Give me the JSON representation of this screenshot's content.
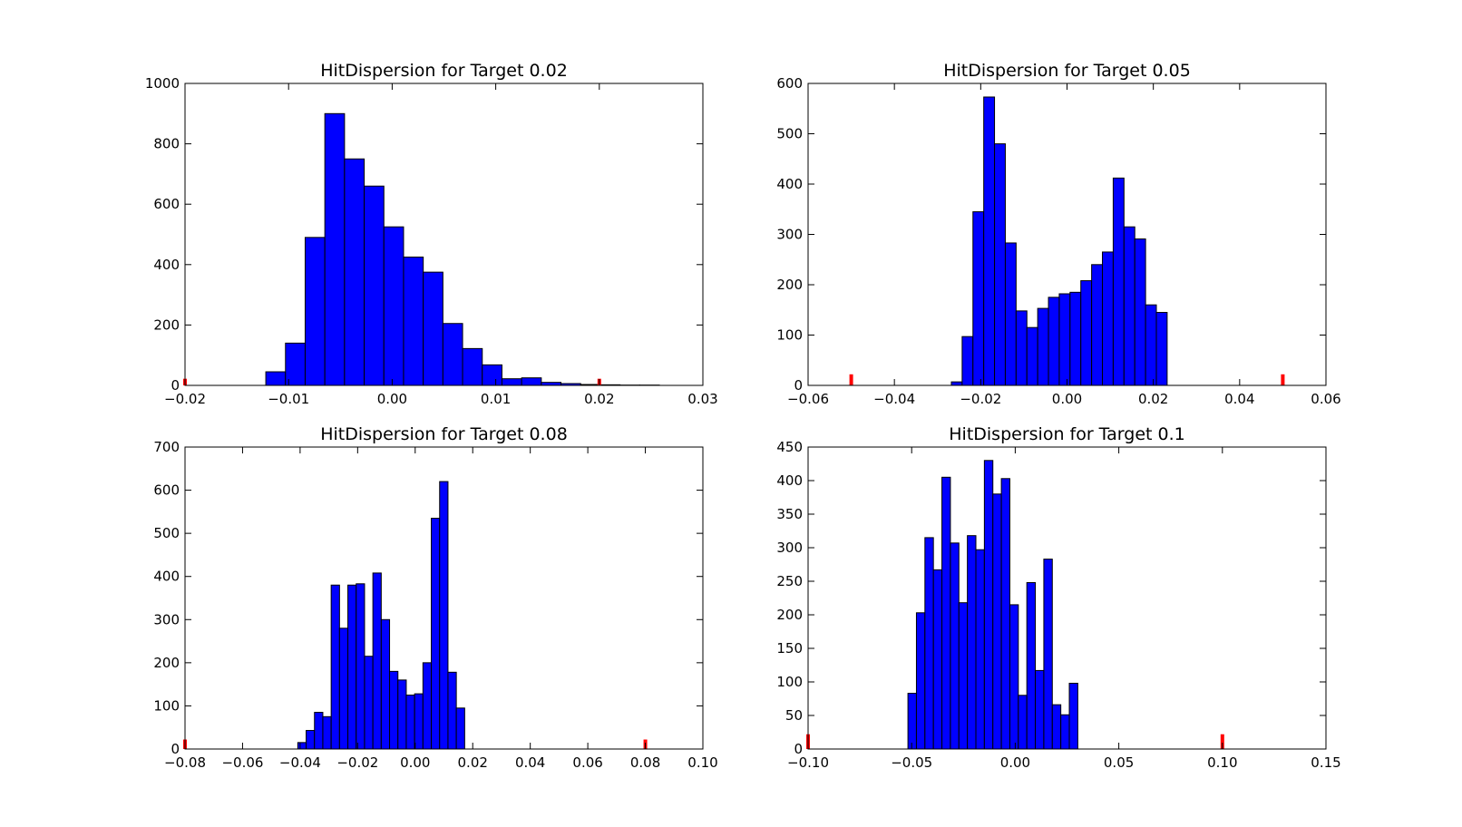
{
  "chart_data": [
    {
      "type": "bar",
      "title": "HitDispersion for Target 0.02",
      "xlim": [
        -0.02,
        0.03
      ],
      "ylim": [
        0,
        1000
      ],
      "xticks": [
        "−0.02",
        "−0.01",
        "0.00",
        "0.01",
        "0.02",
        "0.03"
      ],
      "yticks": [
        "0",
        "200",
        "400",
        "600",
        "800",
        "1000"
      ],
      "xtick_values": [
        -0.02,
        -0.01,
        0.0,
        0.01,
        0.02,
        0.03
      ],
      "ytick_values": [
        0,
        200,
        400,
        600,
        800,
        1000
      ],
      "bin_edges": [
        -0.0122,
        -0.0103,
        -0.0084,
        -0.0065,
        -0.0046,
        -0.0027,
        -0.0008,
        0.0011,
        0.003,
        0.0049,
        0.0068,
        0.0087,
        0.0106,
        0.0125,
        0.0144,
        0.0163,
        0.0182,
        0.0201,
        0.022,
        0.0239,
        0.0258
      ],
      "values": [
        45,
        140,
        490,
        900,
        750,
        660,
        525,
        425,
        375,
        205,
        122,
        68,
        22,
        25,
        10,
        6,
        3,
        2,
        1,
        1
      ],
      "markers": [
        {
          "x": -0.02,
          "height": 22
        },
        {
          "x": 0.02,
          "height": 22
        }
      ],
      "color": "#0000ff",
      "marker_color": "#ff0000"
    },
    {
      "type": "bar",
      "title": "HitDispersion for Target 0.05",
      "xlim": [
        -0.06,
        0.06
      ],
      "ylim": [
        0,
        600
      ],
      "xticks": [
        "−0.06",
        "−0.04",
        "−0.02",
        "0.00",
        "0.02",
        "0.04",
        "0.06"
      ],
      "yticks": [
        "0",
        "100",
        "200",
        "300",
        "400",
        "500",
        "600"
      ],
      "xtick_values": [
        -0.06,
        -0.04,
        -0.02,
        0.0,
        0.02,
        0.04,
        0.06
      ],
      "ytick_values": [
        0,
        100,
        200,
        300,
        400,
        500,
        600
      ],
      "bin_edges": [
        -0.0268,
        -0.0243,
        -0.0218,
        -0.0193,
        -0.0168,
        -0.0143,
        -0.0118,
        -0.0093,
        -0.0068,
        -0.0043,
        -0.0018,
        0.0007,
        0.0032,
        0.0057,
        0.0082,
        0.0107,
        0.0132,
        0.0157,
        0.0182,
        0.0207,
        0.0232
      ],
      "values": [
        7,
        97,
        345,
        573,
        480,
        283,
        148,
        115,
        153,
        175,
        182,
        185,
        208,
        240,
        265,
        412,
        315,
        291,
        160,
        145
      ],
      "markers": [
        {
          "x": -0.05,
          "height": 22
        },
        {
          "x": 0.05,
          "height": 22
        }
      ],
      "color": "#0000ff",
      "marker_color": "#ff0000"
    },
    {
      "type": "bar",
      "title": "HitDispersion for Target 0.08",
      "xlim": [
        -0.08,
        0.1
      ],
      "ylim": [
        0,
        700
      ],
      "xticks": [
        "−0.08",
        "−0.06",
        "−0.04",
        "−0.02",
        "0.00",
        "0.02",
        "0.04",
        "0.06",
        "0.08",
        "0.10"
      ],
      "yticks": [
        "0",
        "100",
        "200",
        "300",
        "400",
        "500",
        "600",
        "700"
      ],
      "xtick_values": [
        -0.08,
        -0.06,
        -0.04,
        -0.02,
        0.0,
        0.02,
        0.04,
        0.06,
        0.08,
        0.1
      ],
      "ytick_values": [
        0,
        100,
        200,
        300,
        400,
        500,
        600,
        700
      ],
      "bin_edges": [
        -0.0408,
        -0.0379,
        -0.035,
        -0.0321,
        -0.0292,
        -0.0263,
        -0.0234,
        -0.0205,
        -0.0176,
        -0.0147,
        -0.0118,
        -0.0089,
        -0.006,
        -0.0031,
        -0.0002,
        0.0027,
        0.0056,
        0.0085,
        0.0114,
        0.0143,
        0.0172
      ],
      "values": [
        15,
        43,
        85,
        75,
        380,
        280,
        380,
        383,
        215,
        408,
        300,
        180,
        160,
        125,
        128,
        200,
        535,
        620,
        178,
        95
      ],
      "markers": [
        {
          "x": -0.08,
          "height": 22
        },
        {
          "x": 0.08,
          "height": 22
        }
      ],
      "color": "#0000ff",
      "marker_color": "#ff0000"
    },
    {
      "type": "bar",
      "title": "HitDispersion for Target 0.1",
      "xlim": [
        -0.1,
        0.15
      ],
      "ylim": [
        0,
        450
      ],
      "xticks": [
        "−0.10",
        "−0.05",
        "0.00",
        "0.05",
        "0.10",
        "0.15"
      ],
      "yticks": [
        "0",
        "50",
        "100",
        "150",
        "200",
        "250",
        "300",
        "350",
        "400",
        "450"
      ],
      "xtick_values": [
        -0.1,
        -0.05,
        0.0,
        0.05,
        0.1,
        0.15
      ],
      "ytick_values": [
        0,
        50,
        100,
        150,
        200,
        250,
        300,
        350,
        400,
        450
      ],
      "bin_edges": [
        -0.0518,
        -0.0477,
        -0.0436,
        -0.0395,
        -0.0354,
        -0.0313,
        -0.0272,
        -0.0231,
        -0.019,
        -0.0149,
        -0.0108,
        -0.0067,
        -0.0026,
        0.0015,
        0.0056,
        0.0097,
        0.0138,
        0.0179,
        0.022,
        0.0261,
        0.0302
      ],
      "values": [
        83,
        203,
        315,
        267,
        405,
        307,
        218,
        318,
        297,
        430,
        380,
        403,
        215,
        80,
        248,
        117,
        283,
        66,
        51,
        98
      ],
      "markers": [
        {
          "x": -0.1,
          "height": 22
        },
        {
          "x": 0.1,
          "height": 22
        }
      ],
      "color": "#0000ff",
      "marker_color": "#ff0000"
    }
  ]
}
